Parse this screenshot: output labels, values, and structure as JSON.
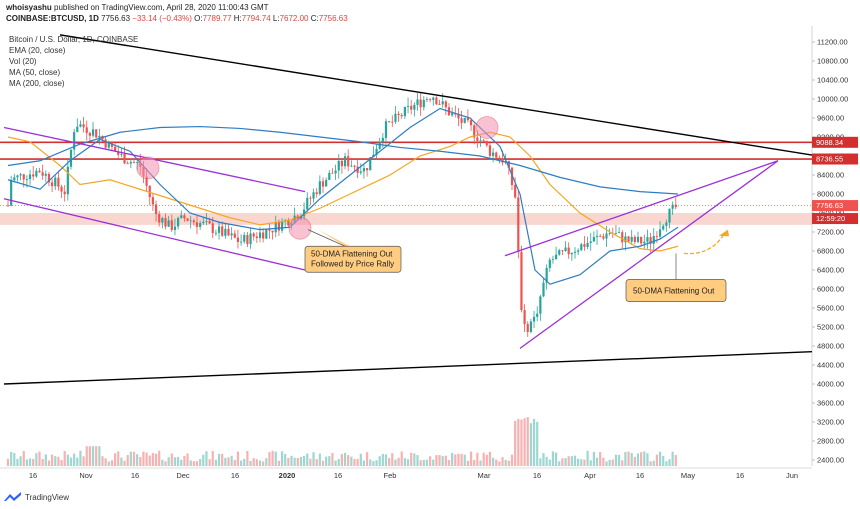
{
  "header": {
    "publisher": "whoisyashu",
    "published_text": "published on TradingView.com, April 28, 2020 11:00:43 GMT",
    "symbol": "COINBASE:BTCUSD, 1D",
    "last": "7756.63",
    "change": "−33.14 (−0.43%)",
    "open_label": "O:",
    "open": "7789.77",
    "high_label": "H:",
    "high": "7794.74",
    "low_label": "L:",
    "low": "7672.00",
    "close_label": "C:",
    "close": "7756.63"
  },
  "legend": {
    "title": "Bitcoin / U.S. Dollar, 1D, COINBASE",
    "items": [
      "EMA (20, close)",
      "Vol (20)",
      "MA (50, close)",
      "MA (200, close)"
    ]
  },
  "price_axis": {
    "ticks": [
      "11200.00",
      "10800.00",
      "10400.00",
      "10000.00",
      "9600.00",
      "9200.00",
      "8800.00",
      "8400.00",
      "8000.00",
      "7600.00",
      "7200.00",
      "6800.00",
      "6400.00",
      "6000.00",
      "5600.00",
      "5200.00",
      "4800.00",
      "4400.00",
      "4000.00",
      "3600.00",
      "3200.00",
      "2800.00",
      "2400.00"
    ],
    "markers": [
      {
        "label": "9088.34",
        "color": "#e0463c"
      },
      {
        "label": "8736.55",
        "color": "#e0463c"
      },
      {
        "label": "7756.63",
        "color": "#ffffff"
      },
      {
        "label": "12:59:20",
        "color": "#e0463c"
      }
    ]
  },
  "time_axis": [
    "16",
    "Nov",
    "16",
    "Dec",
    "16",
    "2020",
    "16",
    "Feb",
    "Mar",
    "16",
    "Apr",
    "16",
    "May",
    "16",
    "Jun"
  ],
  "annotations": {
    "callout1_line1": "50-DMA Flattening Out",
    "callout1_line2": "Followed by Price Rally",
    "callout2": "50-DMA Flattening Out"
  },
  "colors": {
    "up": "#26a69a",
    "down": "#ef5350",
    "ema20": "#2e7dc4",
    "ma50": "#f5a623",
    "ma200": "#2e7dc4",
    "trend_black": "#000000",
    "channel_purple": "#9b30d9",
    "resistance_red": "#d32f2f",
    "support_zone": "#f4b4a8",
    "callout_fill": "#ffcc80"
  },
  "footer": {
    "brand": "TradingView"
  },
  "chart_data": {
    "type": "candlestick",
    "title": "Bitcoin / U.S. Dollar, 1D, COINBASE",
    "y_unit": "USD",
    "ylim": [
      2200,
      11400
    ],
    "last_close": 7756.63,
    "series": [
      {
        "name": "EMA (20, close)"
      },
      {
        "name": "MA (50, close)"
      },
      {
        "name": "MA (200, close)"
      },
      {
        "name": "Vol (20)"
      }
    ],
    "price_path": [
      {
        "x": "16",
        "y": 8300
      },
      {
        "x": "Nov",
        "y": 9200
      },
      {
        "x": "16",
        "y": 8500
      },
      {
        "x": "Dec",
        "y": 7300
      },
      {
        "x": "16",
        "y": 6900
      },
      {
        "x": "2020",
        "y": 7300
      },
      {
        "x": "16",
        "y": 8700
      },
      {
        "x": "Feb",
        "y": 9400
      },
      {
        "x": "Mar",
        "y": 8600
      },
      {
        "x": "16",
        "y": 5200
      },
      {
        "x": "Apr",
        "y": 6900
      },
      {
        "x": "16",
        "y": 7100
      },
      {
        "x": "May",
        "y": 7757
      }
    ],
    "horizontal_levels": [
      9088.34,
      8736.55
    ],
    "support_zone": [
      7350,
      7600
    ]
  }
}
